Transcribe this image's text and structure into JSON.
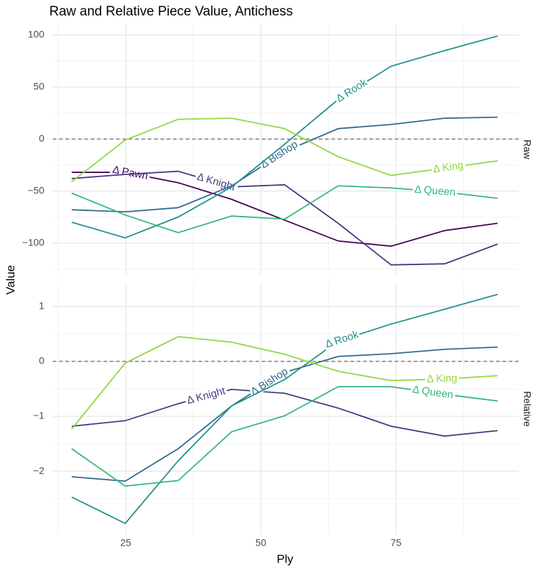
{
  "chart_data": [
    {
      "type": "line",
      "title": "Raw and Relative Piece Value, Antichess",
      "y_label": "Value",
      "strip": "Raw",
      "x": [
        15,
        24.9,
        34.7,
        44.6,
        54.4,
        64.3,
        74.1,
        84,
        93.8
      ],
      "xlim": [
        11.5,
        97.7
      ],
      "xticks": [
        25,
        50,
        75
      ],
      "ylim": [
        -130,
        110
      ],
      "yticks": [
        {
          "value": -100,
          "label": "−100"
        },
        {
          "value": -50,
          "label": "−50"
        },
        0,
        50,
        100
      ],
      "hline": 0,
      "series": [
        {
          "name": "Δ Pawn",
          "color": "#440154",
          "values": [
            -32,
            -32,
            -42,
            -58,
            -78,
            -98,
            -103,
            -88,
            -81
          ]
        },
        {
          "name": "Δ Knight",
          "color": "#443a83",
          "values": [
            -38,
            -34,
            -31,
            -46,
            -44,
            -81,
            -121,
            -120,
            -101
          ]
        },
        {
          "name": "Δ Bishop",
          "color": "#31688e",
          "values": [
            -68,
            -70,
            -66,
            -45,
            -12,
            10,
            14,
            20,
            21
          ]
        },
        {
          "name": "Δ Rook",
          "color": "#21918c",
          "values": [
            -80,
            -95,
            -75,
            -46,
            -5,
            38,
            70,
            85,
            99
          ]
        },
        {
          "name": "Δ Queen",
          "color": "#35b779",
          "values": [
            -52,
            -73,
            -90,
            -74,
            -77,
            -45,
            -47,
            -51,
            -57
          ]
        },
        {
          "name": "Δ King",
          "color": "#90d743",
          "values": [
            -41,
            -1,
            19,
            20,
            10,
            -17,
            -35,
            -28,
            -21
          ]
        }
      ]
    },
    {
      "type": "line",
      "x_label": "Ply",
      "strip": "Relative",
      "x": [
        15,
        24.9,
        34.7,
        44.6,
        54.4,
        64.3,
        74.1,
        84,
        93.8
      ],
      "xlim": [
        11.5,
        97.7
      ],
      "xticks": [
        25,
        50,
        75
      ],
      "ylim": [
        -3.15,
        1.42
      ],
      "yticks": [
        {
          "value": -2,
          "label": "−2"
        },
        {
          "value": -1,
          "label": "−1"
        },
        0,
        1
      ],
      "hline": 0,
      "series": [
        {
          "name": "Δ Knight",
          "color": "#443a83",
          "values": [
            -1.18,
            -1.08,
            -0.77,
            -0.51,
            -0.58,
            -0.85,
            -1.18,
            -1.36,
            -1.26
          ]
        },
        {
          "name": "Δ Bishop",
          "color": "#31688e",
          "values": [
            -2.1,
            -2.18,
            -1.59,
            -0.81,
            -0.2,
            0.09,
            0.14,
            0.22,
            0.26
          ]
        },
        {
          "name": "Δ Rook",
          "color": "#21918c",
          "values": [
            -2.47,
            -2.95,
            -1.81,
            -0.81,
            -0.33,
            0.37,
            0.68,
            0.95,
            1.22
          ]
        },
        {
          "name": "Δ Queen",
          "color": "#35b779",
          "values": [
            -1.59,
            -2.27,
            -2.17,
            -1.28,
            -0.99,
            -0.46,
            -0.46,
            -0.6,
            -0.72
          ]
        },
        {
          "name": "Δ King",
          "color": "#90d743",
          "values": [
            -1.23,
            -0.03,
            0.45,
            0.35,
            0.13,
            -0.18,
            -0.35,
            -0.32,
            -0.26
          ]
        }
      ]
    }
  ]
}
